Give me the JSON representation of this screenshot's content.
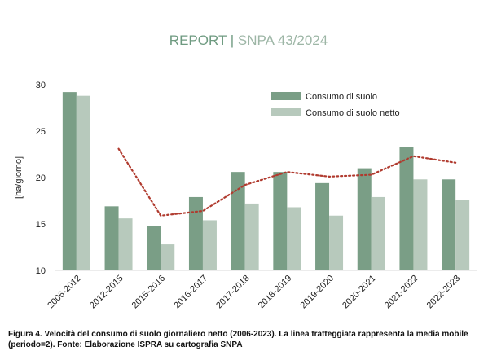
{
  "header": {
    "brand": "REPORT",
    "separator": "|",
    "subtitle": "SNPA 43/2024"
  },
  "caption": {
    "line1": "Figura 4. Velocità del consumo di suolo giornaliero netto (2006-2023). La linea tratteggiata rappresenta la media mobile",
    "line2": "(periodo=2). Fonte: Elaborazione ISPRA su cartografia SNPA"
  },
  "chart_data": {
    "type": "bar",
    "ylabel": "[ha/giorno]",
    "ylim": [
      10,
      30
    ],
    "yticks": [
      "10",
      "15",
      "20",
      "25",
      "30"
    ],
    "categories": [
      "2006-2012",
      "2012-2015",
      "2015-2016",
      "2016-2017",
      "2017-2018",
      "2018-2019",
      "2019-2020",
      "2020-2021",
      "2021-2022",
      "2022-2023"
    ],
    "series": [
      {
        "name": "Consumo di suolo",
        "color": "#7a9e86",
        "values": [
          29.2,
          16.9,
          14.8,
          17.9,
          20.6,
          20.6,
          19.4,
          21.0,
          23.3,
          19.8
        ]
      },
      {
        "name": "Consumo di suolo netto",
        "color": "#b7c9bc",
        "values": [
          28.8,
          15.6,
          12.8,
          15.4,
          17.2,
          16.8,
          15.9,
          17.9,
          19.8,
          17.6
        ]
      }
    ],
    "moving_average": {
      "name": "media mobile (periodo=2)",
      "color": "#b03a2e",
      "values": [
        null,
        23.1,
        15.9,
        16.4,
        19.2,
        20.6,
        20.1,
        20.3,
        22.3,
        21.6
      ]
    },
    "legend_position": "top-right"
  }
}
